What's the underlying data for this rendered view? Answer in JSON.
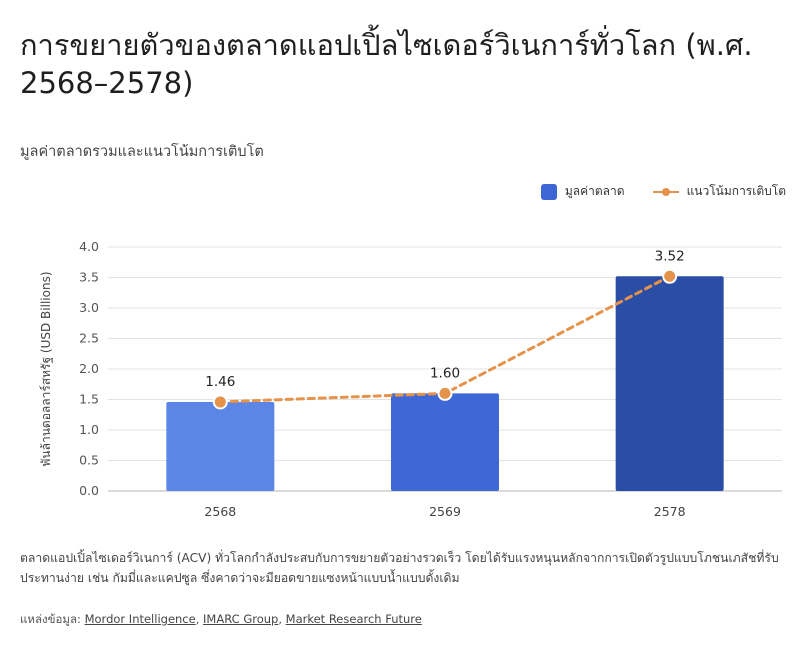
{
  "header": {
    "title": "การขยายตัวของตลาดแอปเปิ้ลไซเดอร์วิเนการ์ทั่วโลก (พ.ศ. 2568–2578)",
    "subtitle": "มูลค่าตลาดรวมและแนวโน้มการเติบโต"
  },
  "legend": {
    "bar_label": "มูลค่าตลาด",
    "line_label": "แนวโน้มการเติบโต"
  },
  "footer": {
    "description": "ตลาดแอปเปิ้ลไซเดอร์วิเนการ์ (ACV) ทั่วโลกกำลังประสบกับการขยายตัวอย่างรวดเร็ว โดยได้รับแรงหนุนหลักจากการเปิดตัวรูปแบบโภชนเภสัชที่รับประทานง่าย เช่น กัมมี่และแคปซูล ซึ่งคาดว่าจะมียอดขายแซงหน้าแบบน้ำแบบดั้งเดิม",
    "sources_prefix": "แหล่งข้อมูล: ",
    "sources": [
      "Mordor Intelligence",
      "IMARC Group",
      "Market Research Future"
    ]
  },
  "chart_data": {
    "type": "bar",
    "categories": [
      "2568",
      "2569",
      "2578"
    ],
    "series": [
      {
        "name": "มูลค่าตลาด",
        "type": "bar",
        "values": [
          1.46,
          1.6,
          3.52
        ],
        "colors": [
          "#5b86e5",
          "#3d68d6",
          "#2a4ea6"
        ]
      },
      {
        "name": "แนวโน้มการเติบโต",
        "type": "line",
        "values": [
          1.46,
          1.6,
          3.52
        ],
        "color": "#e5924a",
        "dashed": true
      }
    ],
    "data_labels": [
      "1.46",
      "1.60",
      "3.52"
    ],
    "ylabel": "พันล้านดอลลาร์สหรัฐ (USD Billions)",
    "xlabel": "",
    "ylim": [
      0,
      4.0
    ],
    "yticks": [
      "0.0",
      "0.5",
      "1.0",
      "1.5",
      "2.0",
      "2.5",
      "3.0",
      "3.5",
      "4.0"
    ],
    "grid": true,
    "legend_position": "top-right"
  }
}
